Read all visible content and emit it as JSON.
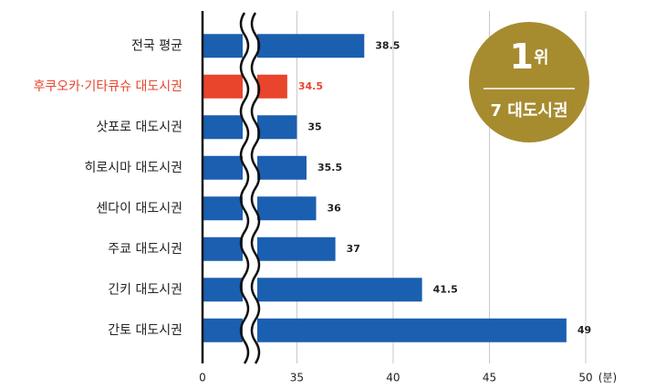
{
  "chart_data": {
    "type": "bar",
    "orientation": "horizontal",
    "categories": [
      "전국 평균",
      "후쿠오카·기타큐슈 대도시권",
      "삿포로 대도시권",
      "히로시마 대도시권",
      "센다이 대도시권",
      "주쿄 대도시권",
      "긴키 대도시권",
      "간토 대도시권"
    ],
    "values": [
      38.5,
      34.5,
      35,
      35.5,
      36,
      37,
      41.5,
      49
    ],
    "color": "#1b5fb0",
    "highlight_index": 1,
    "highlight_color": "#e8452c",
    "xlim": [
      0,
      50
    ],
    "x_break": [
      0,
      30.1
    ],
    "xticks": [
      0,
      35,
      40,
      45,
      50
    ],
    "x_unit": "(분)",
    "grid": true,
    "badge": {
      "rank_number": "1",
      "rank_suffix": "위",
      "subtitle": "7 대도시권",
      "color": "#a78b2f"
    }
  }
}
